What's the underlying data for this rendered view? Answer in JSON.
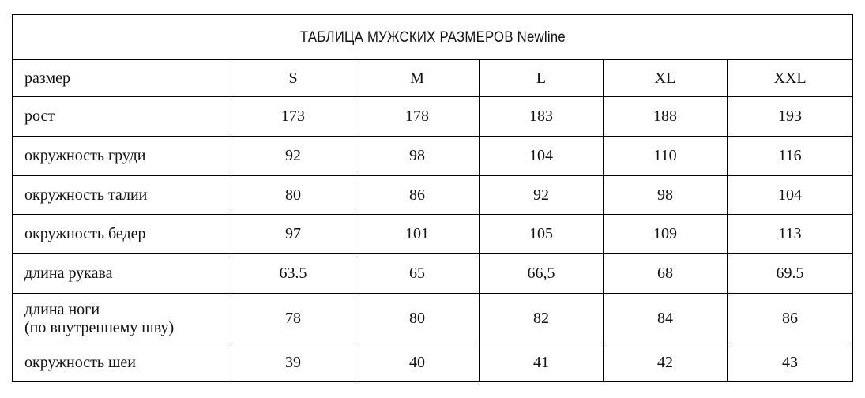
{
  "title": "ТАБЛИЦА МУЖСКИХ РАЗМЕРОВ Newline",
  "header": {
    "label": "размер",
    "sizes": [
      "S",
      "M",
      "L",
      "XL",
      "XXL"
    ]
  },
  "rows": [
    {
      "label": "рост",
      "values": [
        "173",
        "178",
        "183",
        "188",
        "193"
      ]
    },
    {
      "label": "окружность груди",
      "values": [
        "92",
        "98",
        "104",
        "110",
        "116"
      ]
    },
    {
      "label": "окружность талии",
      "values": [
        "80",
        "86",
        "92",
        "98",
        "104"
      ]
    },
    {
      "label": "окружность бедер",
      "values": [
        "97",
        "101",
        "105",
        "109",
        "113"
      ]
    },
    {
      "label": "длина рукава",
      "values": [
        "63.5",
        "65",
        "66,5",
        "68",
        "69.5"
      ]
    },
    {
      "label": "длина ноги",
      "label2": "(по внутреннему шву)",
      "values": [
        "78",
        "80",
        "82",
        "84",
        "86"
      ]
    },
    {
      "label": "окружность шеи",
      "values": [
        "39",
        "40",
        "41",
        "42",
        "43"
      ]
    }
  ]
}
